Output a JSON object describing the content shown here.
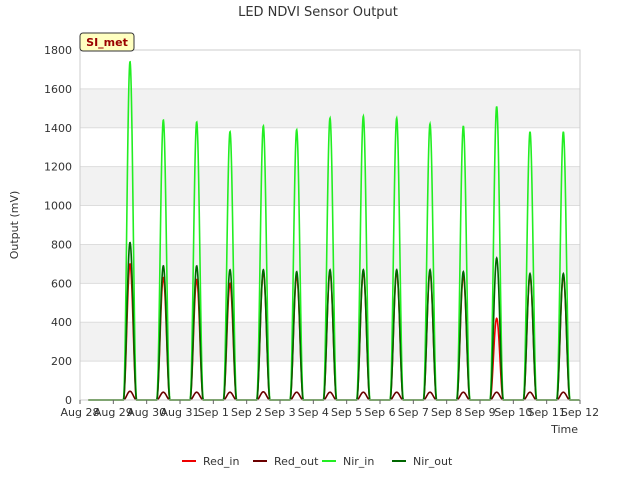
{
  "chart_data": {
    "type": "line",
    "title": "LED NDVI Sensor Output",
    "xlabel": "Time",
    "ylabel": "Output (mV)",
    "station_label": "SI_met",
    "ylim": [
      0,
      1800
    ],
    "y_ticks": [
      0,
      200,
      400,
      600,
      800,
      1000,
      1200,
      1400,
      1600,
      1800
    ],
    "x_ticks": [
      "Aug 28",
      "Aug 29",
      "Aug 30",
      "Aug 31",
      "Sep 1",
      "Sep 2",
      "Sep 3",
      "Sep 4",
      "Sep 5",
      "Sep 6",
      "Sep 7",
      "Sep 8",
      "Sep 9",
      "Sep 10",
      "Sep 11",
      "Sep 12"
    ],
    "grid": true,
    "legend_position": "bottom",
    "day_peak_fraction": 0.5,
    "day_half_width": 0.2,
    "series": [
      {
        "name": "Red_in",
        "color": "#ee0000",
        "peaks": [
          700,
          630,
          620,
          600,
          660,
          640,
          660,
          660,
          660,
          660,
          640,
          420,
          640,
          640
        ]
      },
      {
        "name": "Red_out",
        "color": "#6b0000",
        "peaks": [
          45,
          40,
          40,
          40,
          42,
          40,
          40,
          40,
          40,
          40,
          40,
          40,
          40,
          40
        ]
      },
      {
        "name": "Nir_in",
        "color": "#22ee22",
        "peaks": [
          1740,
          1440,
          1430,
          1380,
          1410,
          1390,
          1450,
          1460,
          1450,
          1420,
          1410,
          1510,
          1380,
          1380
        ]
      },
      {
        "name": "Nir_out",
        "color": "#006600",
        "peaks": [
          810,
          690,
          690,
          670,
          670,
          660,
          670,
          670,
          670,
          670,
          660,
          730,
          650,
          650
        ]
      }
    ]
  }
}
